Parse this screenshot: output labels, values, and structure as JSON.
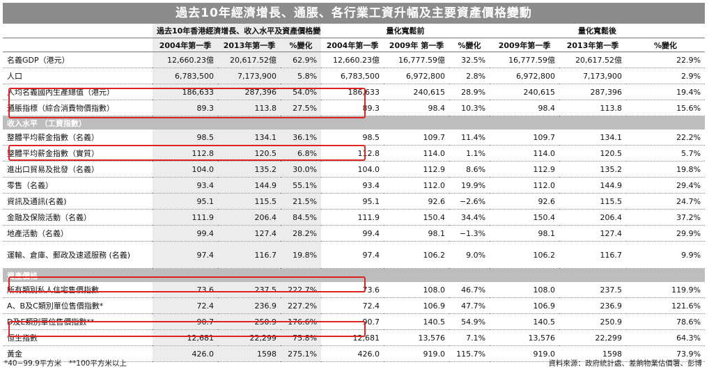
{
  "title": "過去10年經濟增長、通脹、各行業工資升幅及主要資產價格變動",
  "groups": [
    "過去10年香港經濟增長、收入水平及資產價格變化",
    "量化寬鬆前",
    "量化寬鬆後"
  ],
  "columns": [
    "2004年第一季",
    "2013年第一季",
    "%變化",
    "2004年第一季",
    "2009年 第一季",
    "%變化",
    "2009年第一季",
    "2013年第一季",
    "%變化"
  ],
  "rows_top": [
    {
      "label": "名義GDP（港元）",
      "v": [
        "12,660.23億",
        "20,617.52億",
        "62.9%",
        "12,660.23億",
        "16,777.59億",
        "32.5%",
        "16,777.59億",
        "20,617.52億",
        "22.9%"
      ]
    },
    {
      "label": "人口",
      "v": [
        "6,783,500",
        "7,173,900",
        "5.8%",
        "6,783,500",
        "6,972,800",
        "2.8%",
        "6,972,800",
        "7,173,900",
        "2.9%"
      ]
    },
    {
      "label": "人均名義國內生產總值（港元）",
      "v": [
        "186,633",
        "287,396",
        "54.0%",
        "186,633",
        "240,615",
        "28.9%",
        "240,615",
        "287,396",
        "19.4%"
      ]
    },
    {
      "label": "通脹指標（綜合消費物價指數）",
      "v": [
        "89.3",
        "113.8",
        "27.5%",
        "89.3",
        "98.4",
        "10.3%",
        "98.4",
        "113.8",
        "15.6%"
      ]
    }
  ],
  "section_income": "收入水平 （工資指數）",
  "rows_income": [
    {
      "label": "整體平均薪金指數（名義）",
      "v": [
        "98.5",
        "134.1",
        "36.1%",
        "98.5",
        "109.7",
        "11.4%",
        "109.7",
        "134.1",
        "22.2%"
      ]
    },
    {
      "label": "整體平均薪金指數（實質）",
      "v": [
        "112.8",
        "120.5",
        "6.8%",
        "112.8",
        "114.0",
        "1.1%",
        "114.0",
        "120.5",
        "5.7%"
      ]
    },
    {
      "label": "進出口貿易及批發（名義）",
      "v": [
        "104.0",
        "135.2",
        "30.0%",
        "104.0",
        "112.9",
        "8.6%",
        "112.9",
        "135.2",
        "19.8%"
      ]
    },
    {
      "label": "零售（名義）",
      "v": [
        "93.4",
        "144.9",
        "55.1%",
        "93.4",
        "112.0",
        "19.9%",
        "112.0",
        "144.9",
        "29.4%"
      ]
    },
    {
      "label": "資訊及通訊(名義)",
      "v": [
        "95.1",
        "115.5",
        "21.5%",
        "95.1",
        "92.6",
        "−2.6%",
        "92.6",
        "115.5",
        "24.7%"
      ]
    },
    {
      "label": "金融及保險活動（名義）",
      "v": [
        "111.9",
        "206.4",
        "84.5%",
        "111.9",
        "150.4",
        "34.4%",
        "150.4",
        "206.4",
        "37.2%"
      ]
    },
    {
      "label": "地產活動（名義）",
      "v": [
        "99.4",
        "127.4",
        "28.2%",
        "99.4",
        "98.1",
        "−1.3%",
        "98.1",
        "127.4",
        "29.9%"
      ]
    },
    {
      "label": "運輸、倉庫、郵政及速遞服務 (名義)",
      "v": [
        "97.4",
        "116.7",
        "19.8%",
        "97.4",
        "106.2",
        "9.0%",
        "106.2",
        "116.7",
        "9.9%"
      ]
    }
  ],
  "section_assets": "資產價格",
  "rows_assets": [
    {
      "label": "所有類別私人住宅售價指數",
      "v": [
        "73.6",
        "237.5",
        "222.7%",
        "73.6",
        "108.0",
        "46.7%",
        "108.0",
        "237.5",
        "119.9%"
      ]
    },
    {
      "label": "A、B及C類別單位售價指數*",
      "v": [
        "72.4",
        "236.9",
        "227.2%",
        "72.4",
        "106.9",
        "47.7%",
        "106.9",
        "236.9",
        "121.6%"
      ]
    },
    {
      "label": "D及E類別單位售價指數**",
      "v": [
        "90.7",
        "250.9",
        "176.6%",
        "90.7",
        "140.5",
        "54.9%",
        "140.5",
        "250.9",
        "78.6%"
      ]
    },
    {
      "label": "恒生指數",
      "v": [
        "12,681",
        "22,299",
        "75.8%",
        "12,681",
        "13,576",
        "7.1%",
        "13,576",
        "22,299",
        "64.3%"
      ]
    },
    {
      "label": "黃金",
      "v": [
        "426.0",
        "1598",
        "275.1%",
        "426.0",
        "919.0",
        "115.7%",
        "919.0",
        "1598",
        "73.9%"
      ]
    }
  ],
  "footnote": "*40−99.9平方米　**100平方米以上",
  "source": "資料來源：政府統計處、差餉物業估價署、彭博",
  "colors": {
    "title_bg": "#8c8c8c",
    "section_bg": "#bdbdbd",
    "highlight": "#d22222"
  }
}
